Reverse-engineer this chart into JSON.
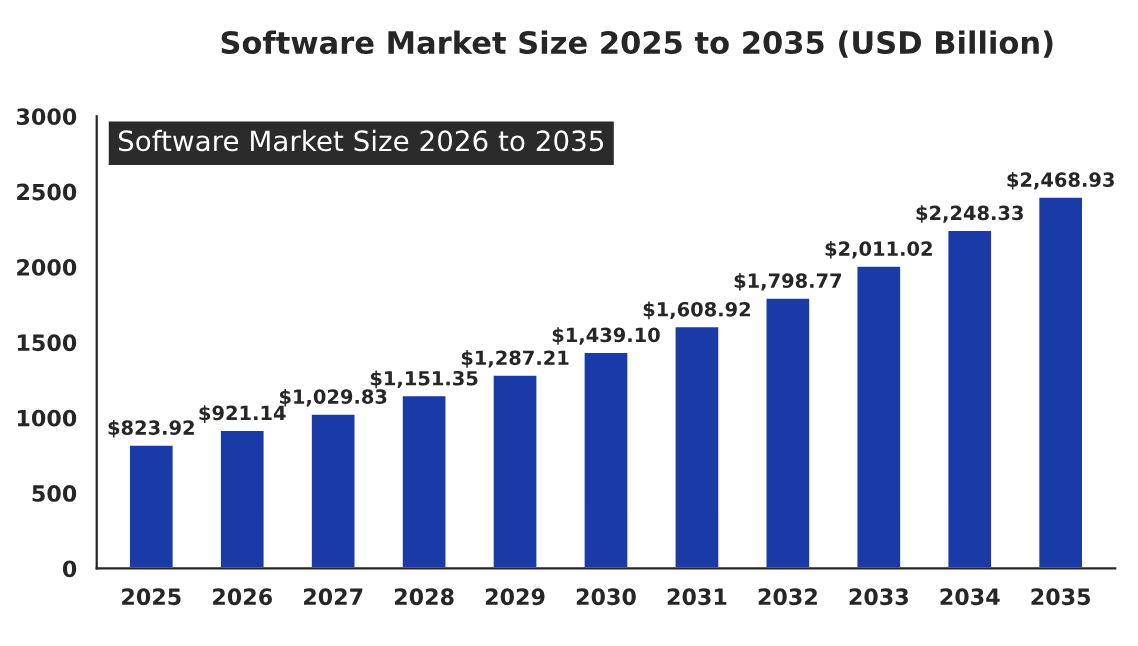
{
  "chart_data": {
    "type": "bar",
    "title": "Software Market Size 2025 to 2035 (USD Billion)",
    "categories": [
      "2025",
      "2026",
      "2027",
      "2028",
      "2029",
      "2030",
      "2031",
      "2032",
      "2033",
      "2034",
      "2035"
    ],
    "values": [
      823.92,
      921.14,
      1029.83,
      1151.35,
      1287.21,
      1439.1,
      1608.92,
      1798.77,
      2011.02,
      2248.33,
      2468.93
    ],
    "value_labels": [
      "$823.92",
      "$921.14",
      "$1,029.83",
      "$1,151.35",
      "$1,287.21",
      "$1,439.10",
      "$1,608.92",
      "$1,798.77",
      "$2,011.02",
      "$2,248.33",
      "$2,468.93"
    ],
    "color": "#1a3aa8",
    "ylim": [
      0,
      3000
    ],
    "yticks": [
      0,
      500,
      1000,
      1500,
      2000,
      2500,
      3000
    ],
    "annotations": [
      "Software Market Size 2026 to 2035"
    ]
  }
}
